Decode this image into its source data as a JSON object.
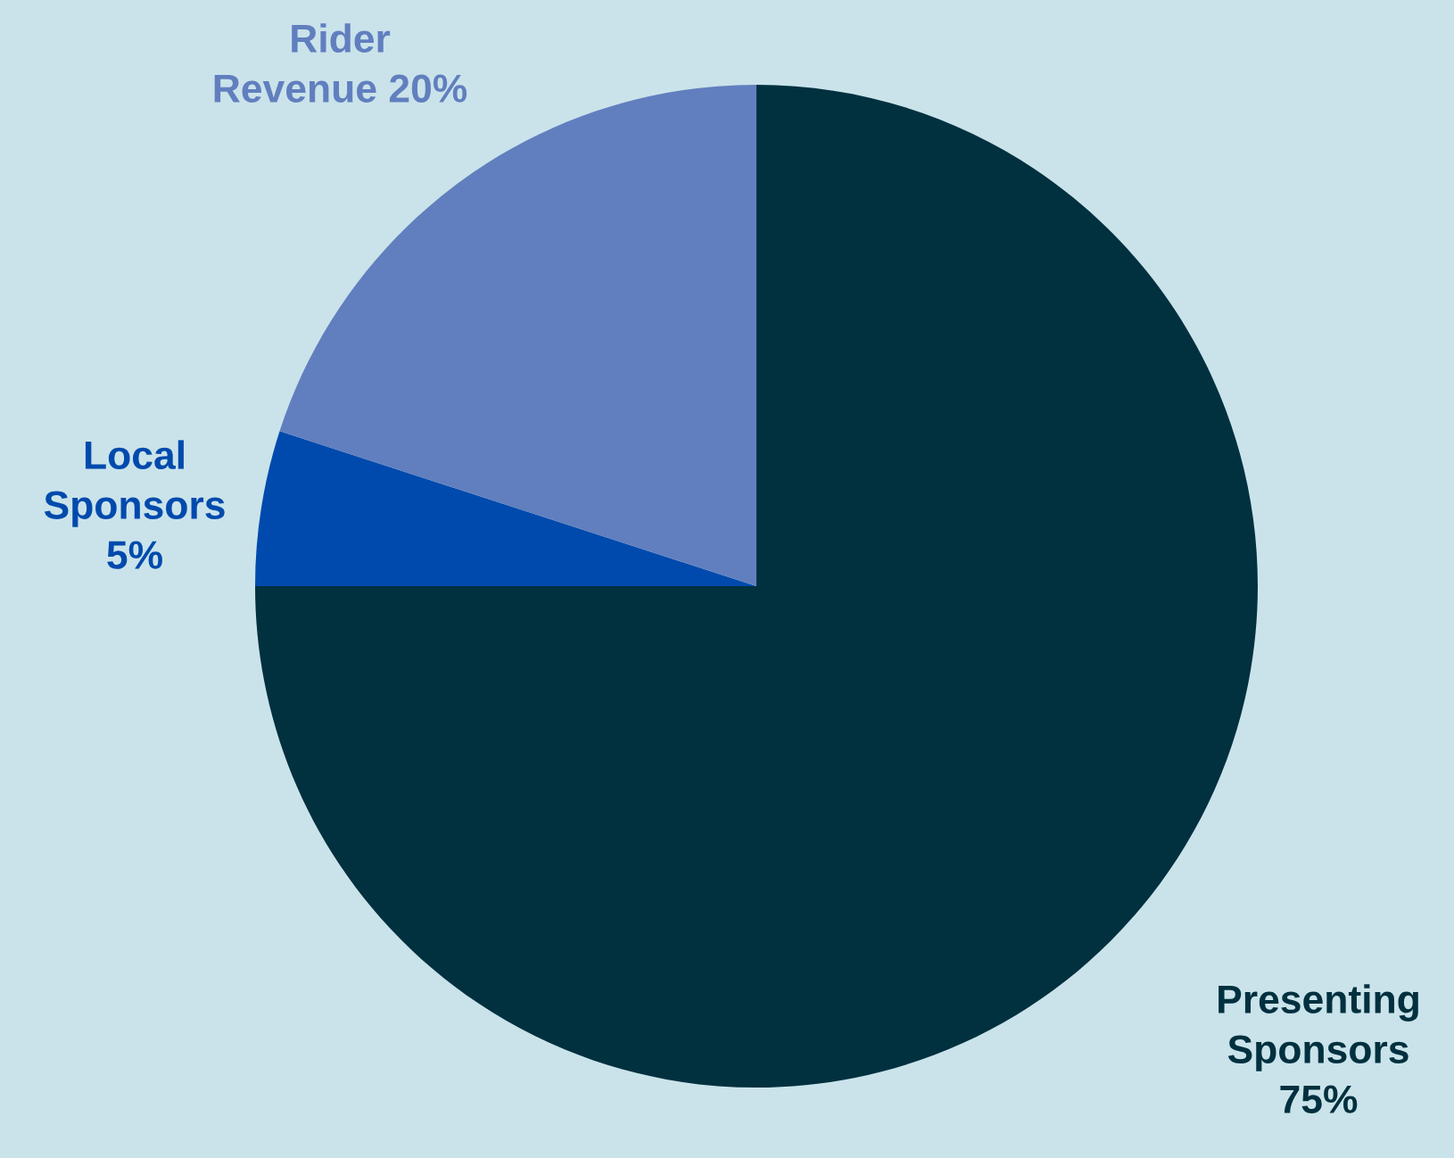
{
  "chart_data": {
    "type": "pie",
    "categories": [
      "Presenting Sponsors",
      "Local Sponsors",
      "Rider Revenue"
    ],
    "values": [
      75,
      5,
      20
    ],
    "colors": [
      "#01303f",
      "#004aad",
      "#617fbf"
    ],
    "value_labels": [
      "75%",
      "5%",
      "20%"
    ]
  }
}
